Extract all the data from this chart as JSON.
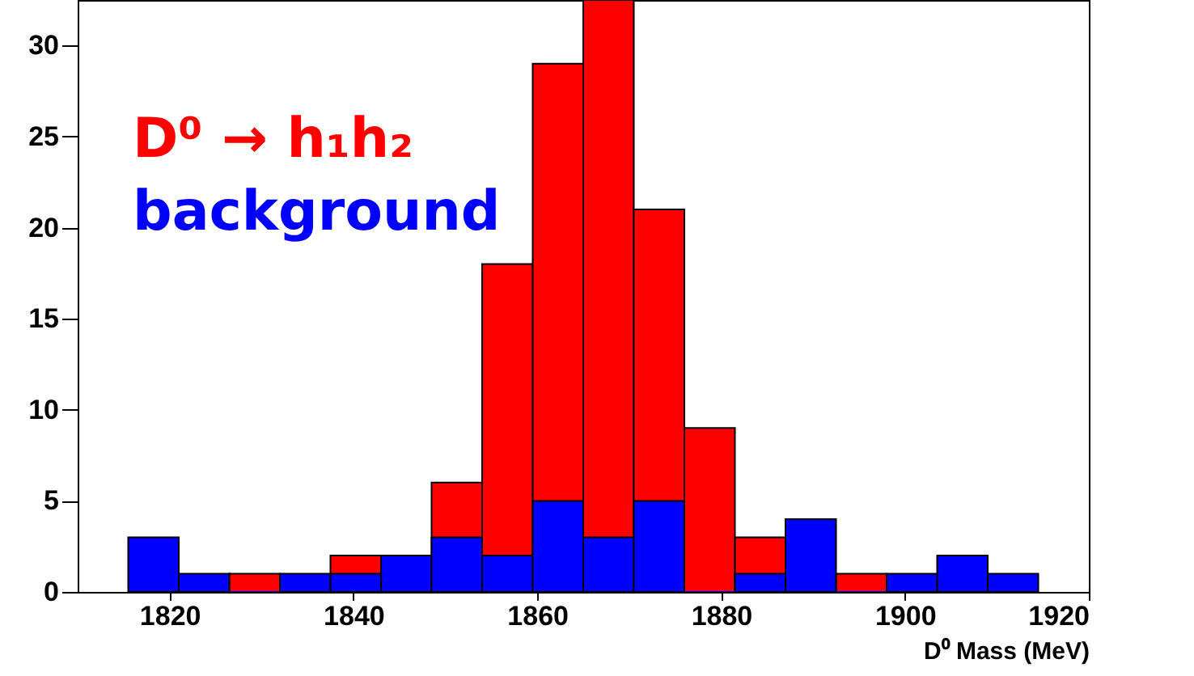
{
  "chart_data": {
    "type": "histogram",
    "xlabel": "D⁰ Mass (MeV)",
    "bins": [
      1815.5,
      1821,
      1826.5,
      1832,
      1837.5,
      1843,
      1848.5,
      1854,
      1859.5,
      1865,
      1870.5,
      1876,
      1881.5,
      1887,
      1892.5,
      1898,
      1903.5,
      1909,
      1914.5
    ],
    "series": [
      {
        "name": "D⁰ → h₁h₂",
        "color": "#ff0000",
        "values": [
          null,
          null,
          1,
          null,
          2,
          null,
          6,
          18,
          29,
          32.5,
          21,
          9,
          3,
          null,
          1,
          null,
          null,
          null
        ]
      },
      {
        "name": "background",
        "color": "#0000ff",
        "values": [
          3,
          1,
          0,
          1,
          1,
          2,
          3,
          2,
          5,
          3,
          5,
          0,
          1,
          4,
          0,
          1,
          2,
          1
        ]
      }
    ],
    "xlim": [
      1810,
      1920
    ],
    "xticks": [
      1820,
      1840,
      1860,
      1880,
      1900,
      1920
    ],
    "ylim": [
      0,
      32.5
    ],
    "yticks": [
      0,
      5,
      10,
      15,
      20,
      25,
      30
    ],
    "legend": "top left"
  }
}
